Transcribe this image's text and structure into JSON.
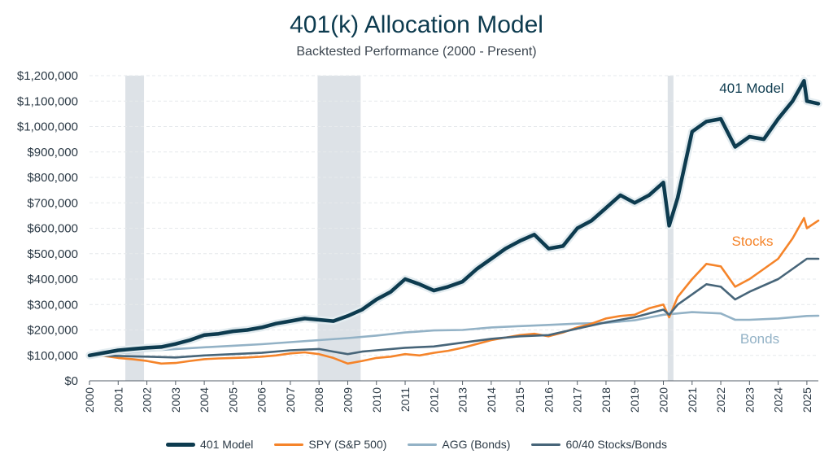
{
  "colors": {
    "model": "#0d3b4f",
    "model_halo": "#e3ecf0",
    "spy": "#f5842a",
    "agg": "#93b2c6",
    "mix": "#476579",
    "recession": "#dde2e7",
    "grid": "#e6e9ec",
    "axis": "#555f68"
  },
  "chart_data": {
    "type": "line",
    "title": "401(k) Allocation Model",
    "subtitle": "Backtested Performance (2000 - Present)",
    "xlabel": "",
    "ylabel": "",
    "xlim": [
      2000,
      2025.4
    ],
    "ylim": [
      0,
      1200000
    ],
    "x_ticks": [
      2000,
      2001,
      2002,
      2003,
      2004,
      2005,
      2006,
      2007,
      2008,
      2009,
      2010,
      2011,
      2012,
      2013,
      2014,
      2015,
      2016,
      2017,
      2018,
      2019,
      2020,
      2021,
      2022,
      2023,
      2024,
      2025
    ],
    "x_tick_labels": [
      "2000",
      "2001",
      "2002",
      "2003",
      "2004",
      "2005",
      "2006",
      "2007",
      "2008",
      "2009",
      "2010",
      "2011",
      "2012",
      "2013",
      "2014",
      "2015",
      "2016",
      "2017",
      "2018",
      "2019",
      "2020",
      "2021",
      "2022",
      "2023",
      "2024",
      "2025"
    ],
    "y_ticks": [
      0,
      100000,
      200000,
      300000,
      400000,
      500000,
      600000,
      700000,
      800000,
      900000,
      1000000,
      1100000,
      1200000
    ],
    "y_tick_labels": [
      "$0",
      "$100,000",
      "$200,000",
      "$300,000",
      "$400,000",
      "$500,000",
      "$600,000",
      "$700,000",
      "$800,000",
      "$900,000",
      "$1,000,000",
      "$1,100,000",
      "$1,200,000"
    ],
    "grid": true,
    "shaded_periods": [
      [
        2001.25,
        2001.9
      ],
      [
        2007.95,
        2009.45
      ],
      [
        2020.15,
        2020.35
      ]
    ],
    "series": [
      {
        "name": "401 Model",
        "key": "model",
        "end_label": "401 Model",
        "x": [
          2000,
          2000.5,
          2001,
          2001.5,
          2002,
          2002.5,
          2003,
          2003.5,
          2004,
          2004.5,
          2005,
          2005.5,
          2006,
          2006.5,
          2007,
          2007.5,
          2008,
          2008.5,
          2009,
          2009.5,
          2010,
          2010.5,
          2011,
          2011.5,
          2012,
          2012.5,
          2013,
          2013.5,
          2014,
          2014.5,
          2015,
          2015.5,
          2016,
          2016.5,
          2017,
          2017.5,
          2018,
          2018.5,
          2019,
          2019.5,
          2020,
          2020.2,
          2020.5,
          2021,
          2021.5,
          2022,
          2022.5,
          2023,
          2023.5,
          2024,
          2024.5,
          2024.9,
          2025,
          2025.4
        ],
        "values": [
          100000,
          110000,
          120000,
          125000,
          130000,
          133000,
          145000,
          160000,
          180000,
          185000,
          195000,
          200000,
          210000,
          225000,
          235000,
          245000,
          240000,
          235000,
          255000,
          280000,
          320000,
          350000,
          400000,
          380000,
          355000,
          370000,
          390000,
          440000,
          480000,
          520000,
          550000,
          575000,
          520000,
          530000,
          600000,
          630000,
          680000,
          730000,
          700000,
          730000,
          780000,
          610000,
          720000,
          980000,
          1020000,
          1030000,
          920000,
          960000,
          950000,
          1030000,
          1100000,
          1180000,
          1100000,
          1090000
        ]
      },
      {
        "name": "SPY (S&P 500)",
        "key": "spy",
        "end_label": "Stocks",
        "x": [
          2000,
          2000.5,
          2001,
          2001.5,
          2002,
          2002.5,
          2003,
          2003.5,
          2004,
          2004.5,
          2005,
          2005.5,
          2006,
          2006.5,
          2007,
          2007.5,
          2008,
          2008.5,
          2009,
          2009.5,
          2010,
          2010.5,
          2011,
          2011.5,
          2012,
          2012.5,
          2013,
          2013.5,
          2014,
          2014.5,
          2015,
          2015.5,
          2016,
          2016.5,
          2017,
          2017.5,
          2018,
          2018.5,
          2019,
          2019.5,
          2020,
          2020.2,
          2020.5,
          2021,
          2021.5,
          2022,
          2022.5,
          2023,
          2023.5,
          2024,
          2024.5,
          2024.9,
          2025,
          2025.4
        ],
        "values": [
          100000,
          98000,
          90000,
          85000,
          78000,
          68000,
          70000,
          78000,
          85000,
          88000,
          90000,
          92000,
          95000,
          100000,
          108000,
          112000,
          105000,
          90000,
          68000,
          78000,
          90000,
          95000,
          105000,
          100000,
          110000,
          118000,
          130000,
          145000,
          160000,
          170000,
          180000,
          185000,
          175000,
          190000,
          210000,
          225000,
          245000,
          255000,
          260000,
          285000,
          300000,
          250000,
          330000,
          400000,
          460000,
          450000,
          370000,
          400000,
          440000,
          480000,
          560000,
          640000,
          600000,
          630000
        ]
      },
      {
        "name": "AGG (Bonds)",
        "key": "agg",
        "end_label": "Bonds",
        "x": [
          2000,
          2001,
          2002,
          2003,
          2004,
          2005,
          2006,
          2007,
          2008,
          2009,
          2010,
          2011,
          2012,
          2013,
          2014,
          2015,
          2016,
          2017,
          2018,
          2019,
          2020,
          2021,
          2022,
          2022.5,
          2023,
          2024,
          2025,
          2025.4
        ],
        "values": [
          100000,
          108000,
          118000,
          125000,
          132000,
          138000,
          144000,
          152000,
          160000,
          168000,
          178000,
          190000,
          198000,
          200000,
          210000,
          215000,
          220000,
          225000,
          228000,
          238000,
          260000,
          270000,
          265000,
          240000,
          240000,
          245000,
          255000,
          256000
        ]
      },
      {
        "name": "60/40 Stocks/Bonds",
        "key": "mix",
        "end_label": "",
        "x": [
          2000,
          2001,
          2002,
          2003,
          2004,
          2005,
          2006,
          2007,
          2008,
          2008.5,
          2009,
          2009.5,
          2010,
          2011,
          2012,
          2013,
          2014,
          2015,
          2016,
          2017,
          2018,
          2019,
          2020,
          2020.2,
          2020.5,
          2021,
          2021.5,
          2022,
          2022.5,
          2023,
          2024,
          2024.5,
          2025,
          2025.4
        ],
        "values": [
          100000,
          98000,
          95000,
          92000,
          100000,
          105000,
          110000,
          120000,
          125000,
          115000,
          105000,
          115000,
          120000,
          130000,
          135000,
          150000,
          165000,
          175000,
          180000,
          205000,
          230000,
          250000,
          280000,
          260000,
          300000,
          340000,
          380000,
          370000,
          320000,
          350000,
          400000,
          440000,
          480000,
          480000
        ]
      }
    ]
  },
  "legend": {
    "items": [
      {
        "label": "401 Model"
      },
      {
        "label": "SPY (S&P 500)"
      },
      {
        "label": "AGG (Bonds)"
      },
      {
        "label": "60/40 Stocks/Bonds"
      }
    ]
  }
}
